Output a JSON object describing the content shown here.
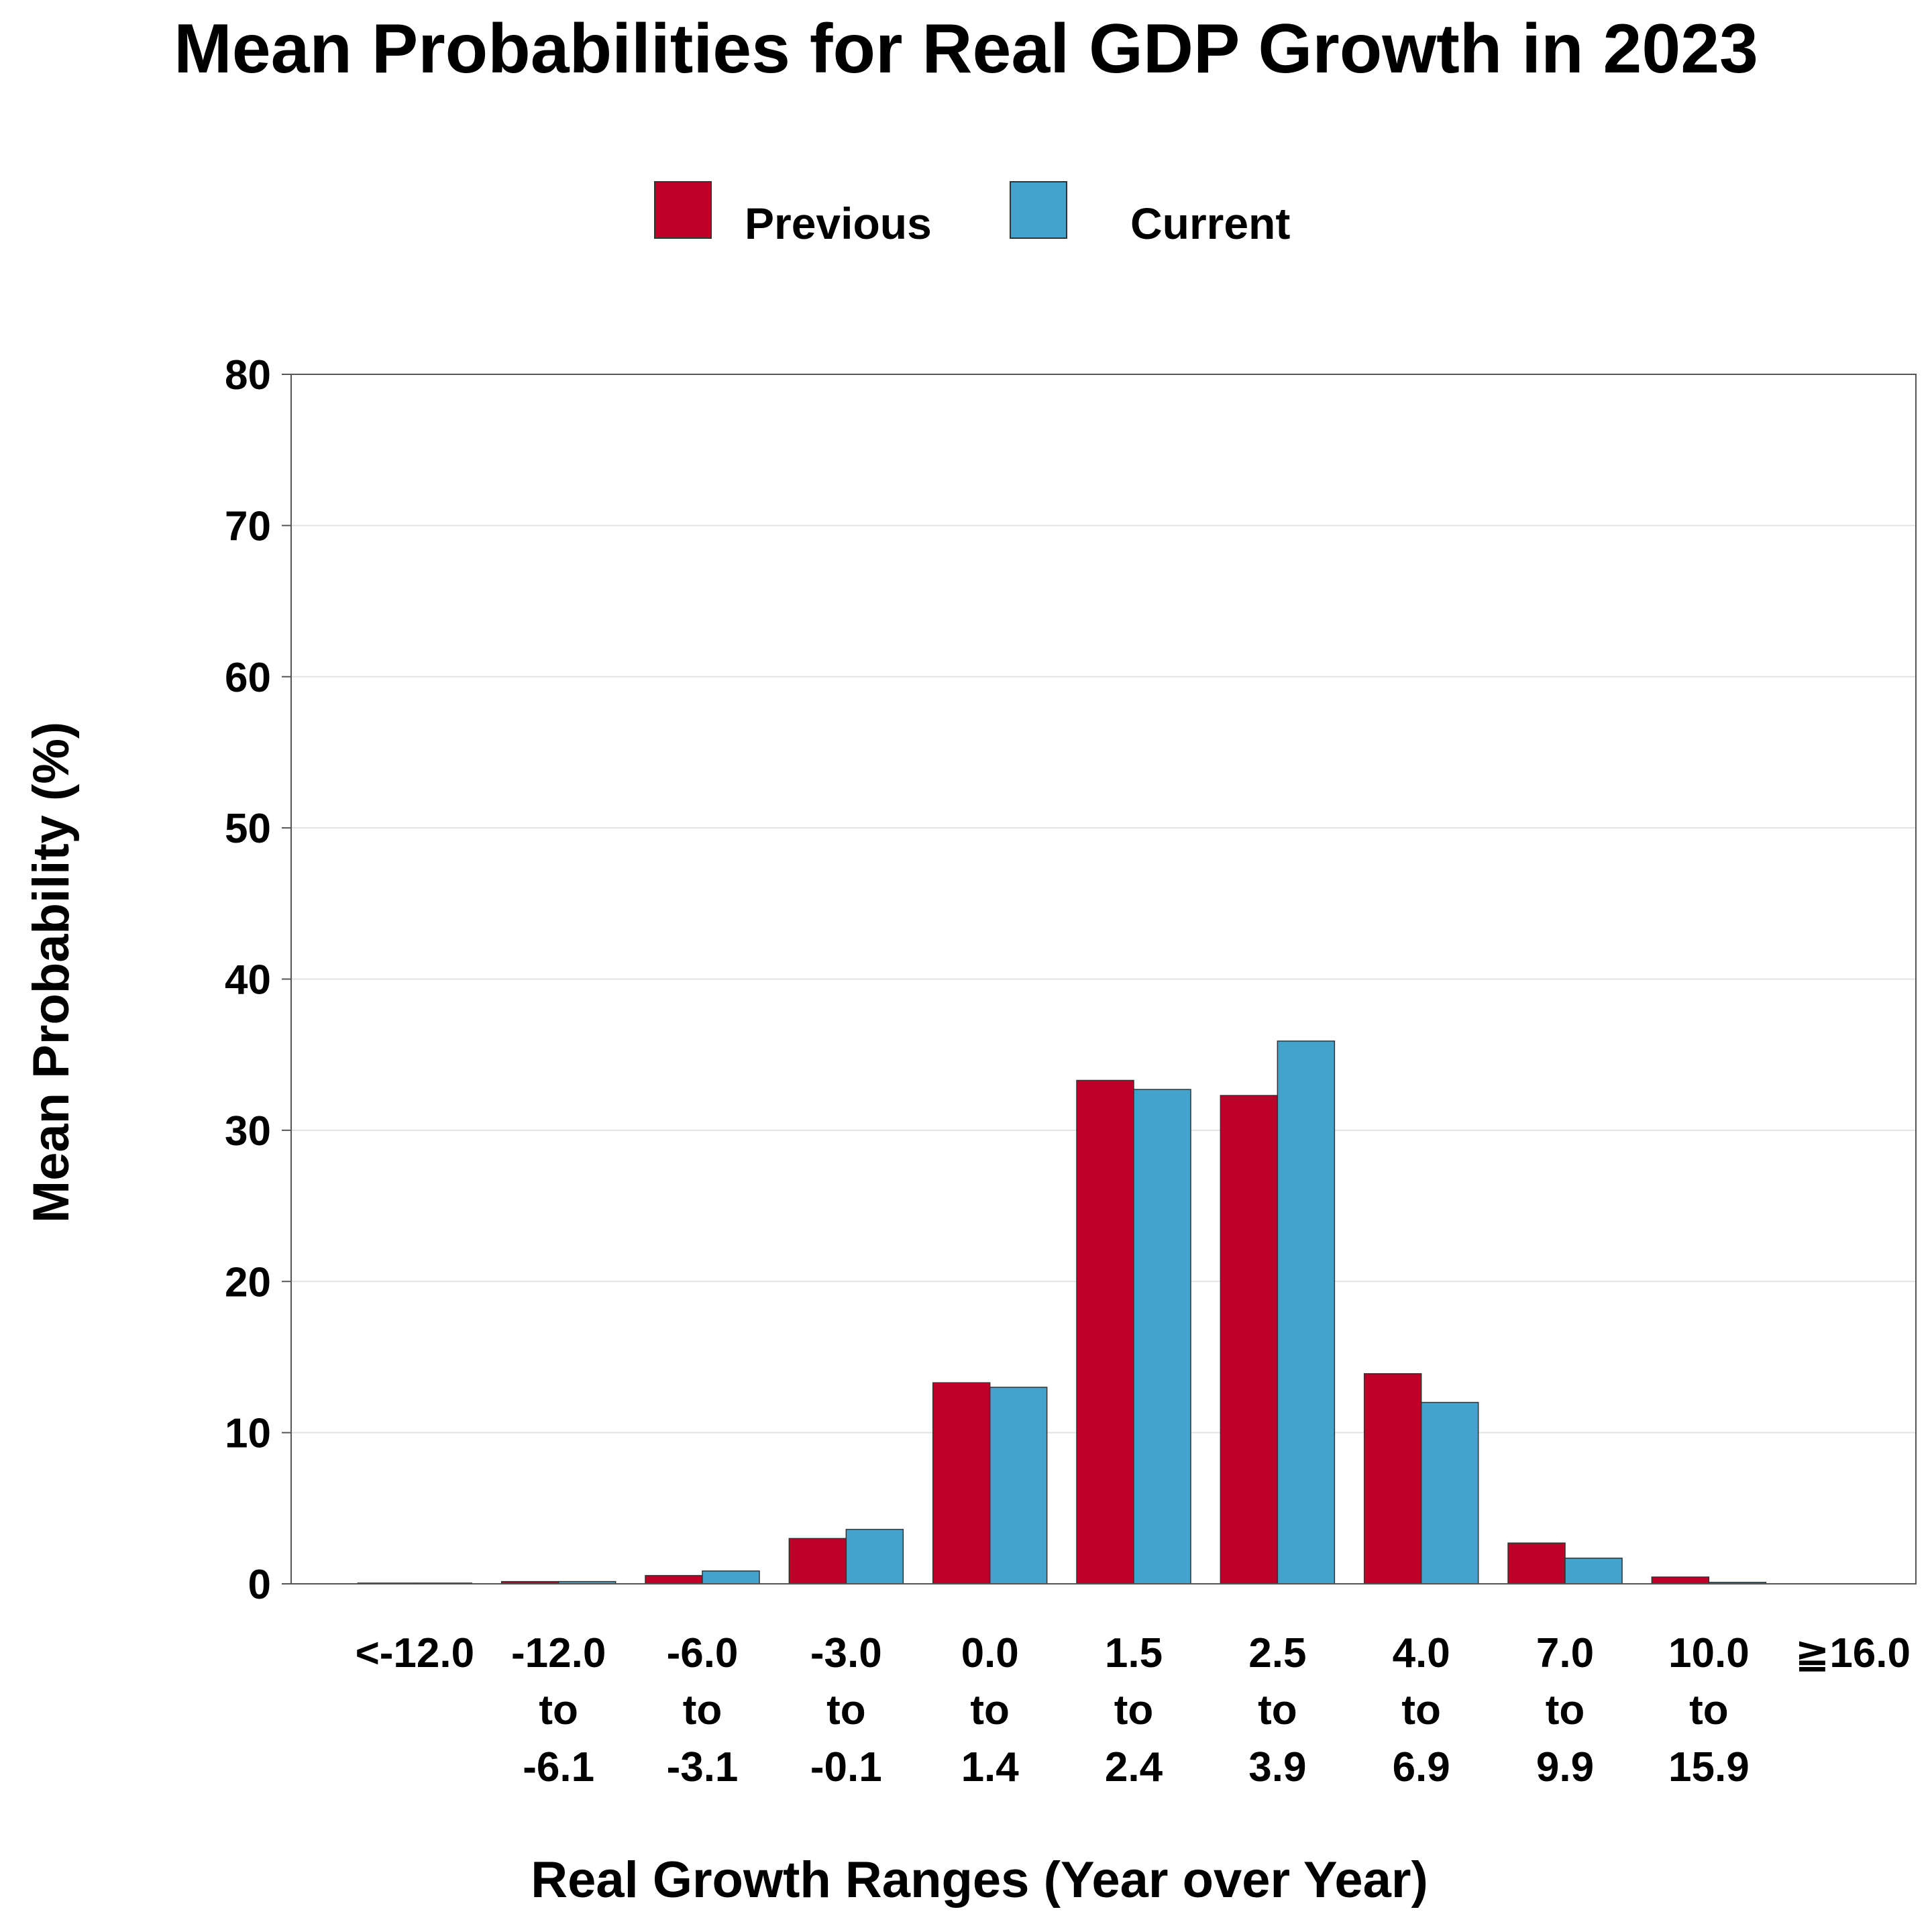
{
  "chart_data": {
    "type": "bar",
    "title": "Mean Probabilities for Real GDP Growth in 2023",
    "xlabel": "Real Growth Ranges (Year over Year)",
    "ylabel": "Mean Probability (%)",
    "ylim": [
      0,
      80
    ],
    "yticks": [
      0,
      10,
      20,
      30,
      40,
      50,
      60,
      70,
      80
    ],
    "grid": true,
    "legend_position": "top-center",
    "categories": [
      [
        "<-12.0"
      ],
      [
        "-12.0",
        "to",
        "-6.1"
      ],
      [
        "-6.0",
        "to",
        "-3.1"
      ],
      [
        "-3.0",
        "to",
        "-0.1"
      ],
      [
        "0.0",
        "to",
        "1.4"
      ],
      [
        "1.5",
        "to",
        "2.4"
      ],
      [
        "2.5",
        "to",
        "3.9"
      ],
      [
        "4.0",
        "to",
        "6.9"
      ],
      [
        "7.0",
        "to",
        "9.9"
      ],
      [
        "10.0",
        "to",
        "15.9"
      ],
      [
        "≧16.0"
      ]
    ],
    "series": [
      {
        "name": "Previous",
        "color": "#BE0028",
        "values": [
          0.05,
          0.15,
          0.55,
          3.0,
          13.3,
          33.3,
          32.3,
          13.9,
          2.7,
          0.45,
          0.0
        ]
      },
      {
        "name": "Current",
        "color": "#44A3CC",
        "values": [
          0.05,
          0.15,
          0.85,
          3.6,
          13.0,
          32.7,
          35.9,
          12.0,
          1.7,
          0.1,
          0.0
        ]
      }
    ]
  }
}
